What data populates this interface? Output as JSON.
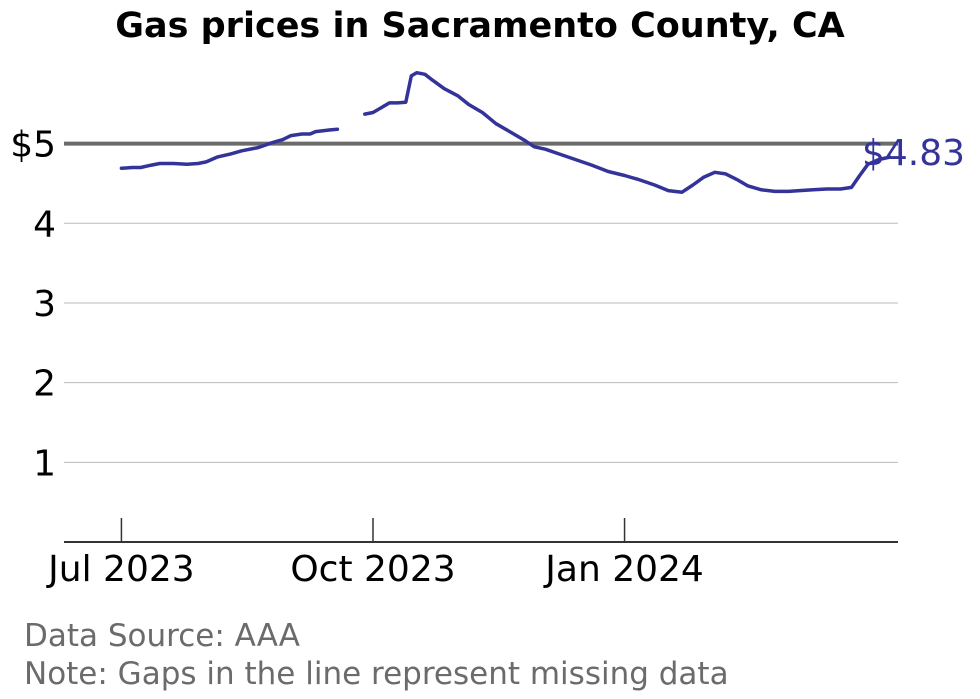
{
  "chart_data": {
    "type": "line",
    "title": "Gas prices in Sacramento County, CA",
    "xlabel": "",
    "ylabel": "",
    "x_domain": [
      "2023-06-10",
      "2024-04-10"
    ],
    "ylim": [
      0,
      6.3
    ],
    "y_ticks": [
      {
        "value": 1,
        "label": "1"
      },
      {
        "value": 2,
        "label": "2"
      },
      {
        "value": 3,
        "label": "3"
      },
      {
        "value": 4,
        "label": "4"
      },
      {
        "value": 5,
        "label": "$5"
      }
    ],
    "reference_line": 5,
    "x_ticks": [
      {
        "date": "2023-07-01",
        "label": "Jul 2023"
      },
      {
        "date": "2023-10-01",
        "label": "Oct 2023"
      },
      {
        "date": "2024-01-01",
        "label": "Jan 2024"
      }
    ],
    "last_value_label": "$4.83",
    "colors": {
      "line": "#33339a",
      "reference": "#6b6b6b",
      "grid": "#bbbbbb"
    },
    "series": [
      {
        "segments": [
          [
            [
              "2023-07-01",
              4.69
            ],
            [
              "2023-07-05",
              4.7
            ],
            [
              "2023-07-08",
              4.7
            ],
            [
              "2023-07-12",
              4.73
            ],
            [
              "2023-07-15",
              4.75
            ],
            [
              "2023-07-20",
              4.75
            ],
            [
              "2023-07-25",
              4.74
            ],
            [
              "2023-07-29",
              4.75
            ],
            [
              "2023-08-01",
              4.77
            ],
            [
              "2023-08-05",
              4.83
            ],
            [
              "2023-08-10",
              4.87
            ],
            [
              "2023-08-14",
              4.91
            ],
            [
              "2023-08-20",
              4.95
            ],
            [
              "2023-08-25",
              5.01
            ],
            [
              "2023-08-29",
              5.05
            ],
            [
              "2023-09-01",
              5.1
            ],
            [
              "2023-09-05",
              5.12
            ],
            [
              "2023-09-08",
              5.12
            ],
            [
              "2023-09-10",
              5.15
            ],
            [
              "2023-09-15",
              5.17
            ],
            [
              "2023-09-18",
              5.18
            ]
          ],
          [
            [
              "2023-09-28",
              5.37
            ],
            [
              "2023-10-01",
              5.39
            ],
            [
              "2023-10-04",
              5.45
            ],
            [
              "2023-10-07",
              5.51
            ],
            [
              "2023-10-10",
              5.51
            ],
            [
              "2023-10-13",
              5.52
            ],
            [
              "2023-10-15",
              5.85
            ],
            [
              "2023-10-17",
              5.89
            ],
            [
              "2023-10-20",
              5.87
            ],
            [
              "2023-10-23",
              5.79
            ],
            [
              "2023-10-27",
              5.69
            ],
            [
              "2023-11-01",
              5.6
            ],
            [
              "2023-11-05",
              5.49
            ],
            [
              "2023-11-10",
              5.39
            ],
            [
              "2023-11-15",
              5.25
            ],
            [
              "2023-11-20",
              5.15
            ],
            [
              "2023-11-25",
              5.05
            ],
            [
              "2023-11-29",
              4.96
            ],
            [
              "2023-12-03",
              4.93
            ],
            [
              "2023-12-08",
              4.87
            ],
            [
              "2023-12-14",
              4.8
            ],
            [
              "2023-12-20",
              4.73
            ],
            [
              "2023-12-26",
              4.65
            ],
            [
              "2024-01-01",
              4.6
            ],
            [
              "2024-01-06",
              4.55
            ],
            [
              "2024-01-12",
              4.48
            ],
            [
              "2024-01-17",
              4.41
            ],
            [
              "2024-01-22",
              4.39
            ],
            [
              "2024-01-26",
              4.48
            ],
            [
              "2024-01-30",
              4.58
            ],
            [
              "2024-02-03",
              4.64
            ],
            [
              "2024-02-07",
              4.62
            ],
            [
              "2024-02-11",
              4.55
            ],
            [
              "2024-02-15",
              4.47
            ],
            [
              "2024-02-20",
              4.42
            ],
            [
              "2024-02-25",
              4.4
            ],
            [
              "2024-03-01",
              4.4
            ],
            [
              "2024-03-05",
              4.41
            ],
            [
              "2024-03-10",
              4.42
            ],
            [
              "2024-03-15",
              4.43
            ],
            [
              "2024-03-20",
              4.43
            ],
            [
              "2024-03-24",
              4.45
            ],
            [
              "2024-03-27",
              4.6
            ],
            [
              "2024-03-30",
              4.74
            ],
            [
              "2024-04-03",
              4.8
            ],
            [
              "2024-04-07",
              4.83
            ]
          ]
        ]
      }
    ],
    "notes": [
      "Data Source: AAA",
      "Note: Gaps in the line represent missing data"
    ]
  }
}
